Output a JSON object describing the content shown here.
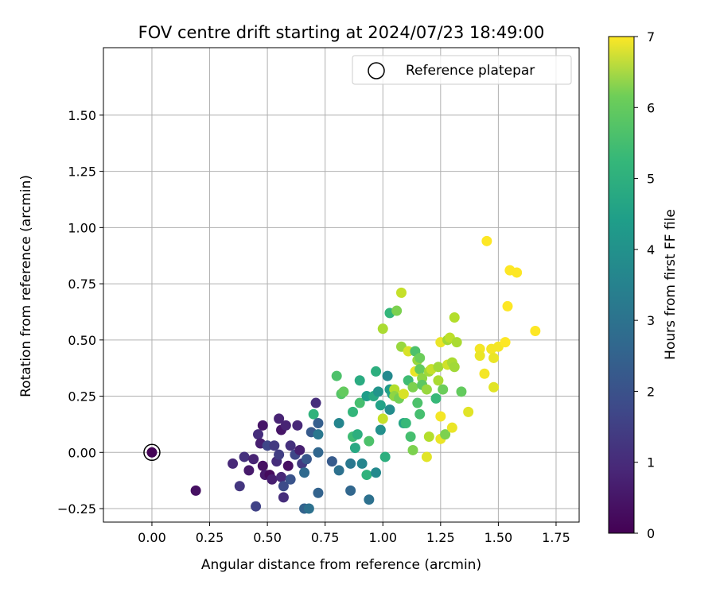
{
  "chart_data": {
    "type": "scatter",
    "title": "FOV centre drift starting at 2024/07/23 18:49:00",
    "xlabel": "Angular distance from reference (arcmin)",
    "ylabel": "Rotation from reference (arcmin)",
    "xlim": [
      -0.21,
      1.85
    ],
    "ylim": [
      -0.31,
      1.8
    ],
    "xticks": [
      "0.00",
      "0.25",
      "0.50",
      "0.75",
      "1.00",
      "1.25",
      "1.50",
      "1.75"
    ],
    "yticks": [
      "−0.25",
      "0.00",
      "0.25",
      "0.50",
      "0.75",
      "1.00",
      "1.25",
      "1.50"
    ],
    "grid": true,
    "legend": {
      "position": "top-right",
      "entries": [
        "Reference platepar"
      ]
    },
    "colorbar": {
      "label": "Hours from first FF file",
      "range": [
        0,
        7
      ],
      "ticks": [
        "0",
        "1",
        "2",
        "3",
        "4",
        "5",
        "6",
        "7"
      ],
      "colormap": "viridis"
    },
    "reference_point": {
      "x": 0.0,
      "y": 0.0
    },
    "points": [
      {
        "x": 0.0,
        "y": 0.0,
        "c": 0.05
      },
      {
        "x": 0.19,
        "y": -0.17,
        "c": 0.3
      },
      {
        "x": 0.35,
        "y": -0.05,
        "c": 0.8
      },
      {
        "x": 0.38,
        "y": -0.15,
        "c": 1.1
      },
      {
        "x": 0.4,
        "y": -0.02,
        "c": 1.0
      },
      {
        "x": 0.42,
        "y": -0.08,
        "c": 0.5
      },
      {
        "x": 0.44,
        "y": -0.03,
        "c": 0.7
      },
      {
        "x": 0.45,
        "y": -0.24,
        "c": 1.4
      },
      {
        "x": 0.46,
        "y": 0.08,
        "c": 0.9
      },
      {
        "x": 0.47,
        "y": 0.04,
        "c": 0.6
      },
      {
        "x": 0.48,
        "y": 0.12,
        "c": 0.4
      },
      {
        "x": 0.48,
        "y": -0.06,
        "c": 0.3
      },
      {
        "x": 0.49,
        "y": -0.1,
        "c": 0.5
      },
      {
        "x": 0.5,
        "y": 0.03,
        "c": 1.5
      },
      {
        "x": 0.51,
        "y": -0.1,
        "c": 0.2
      },
      {
        "x": 0.52,
        "y": -0.12,
        "c": 0.6
      },
      {
        "x": 0.53,
        "y": 0.03,
        "c": 1.2
      },
      {
        "x": 0.54,
        "y": -0.04,
        "c": 0.9
      },
      {
        "x": 0.55,
        "y": 0.15,
        "c": 0.7
      },
      {
        "x": 0.55,
        "y": -0.01,
        "c": 1.3
      },
      {
        "x": 0.56,
        "y": 0.1,
        "c": 0.4
      },
      {
        "x": 0.56,
        "y": -0.11,
        "c": 0.8
      },
      {
        "x": 0.57,
        "y": -0.2,
        "c": 0.9
      },
      {
        "x": 0.57,
        "y": -0.15,
        "c": 1.6
      },
      {
        "x": 0.58,
        "y": 0.12,
        "c": 0.7
      },
      {
        "x": 0.59,
        "y": -0.06,
        "c": 0.3
      },
      {
        "x": 0.6,
        "y": 0.03,
        "c": 1.0
      },
      {
        "x": 0.6,
        "y": -0.12,
        "c": 1.8
      },
      {
        "x": 0.62,
        "y": -0.01,
        "c": 1.5
      },
      {
        "x": 0.63,
        "y": 0.12,
        "c": 0.8
      },
      {
        "x": 0.64,
        "y": 0.01,
        "c": 0.6
      },
      {
        "x": 0.65,
        "y": -0.05,
        "c": 1.2
      },
      {
        "x": 0.66,
        "y": -0.25,
        "c": 2.2
      },
      {
        "x": 0.66,
        "y": -0.09,
        "c": 2.4
      },
      {
        "x": 0.67,
        "y": -0.03,
        "c": 1.9
      },
      {
        "x": 0.68,
        "y": -0.25,
        "c": 2.6
      },
      {
        "x": 0.69,
        "y": 0.09,
        "c": 2.0
      },
      {
        "x": 0.7,
        "y": 0.17,
        "c": 4.5
      },
      {
        "x": 0.71,
        "y": 0.22,
        "c": 0.9
      },
      {
        "x": 0.72,
        "y": 0.13,
        "c": 2.1
      },
      {
        "x": 0.72,
        "y": 0.08,
        "c": 2.8
      },
      {
        "x": 0.72,
        "y": 0.0,
        "c": 2.3
      },
      {
        "x": 0.72,
        "y": -0.18,
        "c": 2.2
      },
      {
        "x": 0.78,
        "y": -0.04,
        "c": 2.0
      },
      {
        "x": 0.8,
        "y": 0.34,
        "c": 5.0
      },
      {
        "x": 0.81,
        "y": 0.13,
        "c": 3.2
      },
      {
        "x": 0.81,
        "y": -0.08,
        "c": 2.6
      },
      {
        "x": 0.82,
        "y": 0.26,
        "c": 5.1
      },
      {
        "x": 0.83,
        "y": 0.27,
        "c": 5.3
      },
      {
        "x": 0.86,
        "y": -0.05,
        "c": 2.8
      },
      {
        "x": 0.86,
        "y": -0.17,
        "c": 2.3
      },
      {
        "x": 0.87,
        "y": 0.18,
        "c": 4.6
      },
      {
        "x": 0.87,
        "y": 0.07,
        "c": 4.8
      },
      {
        "x": 0.88,
        "y": 0.02,
        "c": 4.2
      },
      {
        "x": 0.89,
        "y": 0.08,
        "c": 4.4
      },
      {
        "x": 0.9,
        "y": 0.32,
        "c": 4.3
      },
      {
        "x": 0.9,
        "y": 0.22,
        "c": 4.9
      },
      {
        "x": 0.91,
        "y": -0.05,
        "c": 3.2
      },
      {
        "x": 0.93,
        "y": 0.25,
        "c": 3.9
      },
      {
        "x": 0.93,
        "y": -0.1,
        "c": 4.5
      },
      {
        "x": 0.94,
        "y": -0.21,
        "c": 2.6
      },
      {
        "x": 0.94,
        "y": 0.05,
        "c": 5.0
      },
      {
        "x": 0.96,
        "y": 0.25,
        "c": 4.2
      },
      {
        "x": 0.97,
        "y": 0.36,
        "c": 4.4
      },
      {
        "x": 0.97,
        "y": -0.09,
        "c": 3.3
      },
      {
        "x": 0.98,
        "y": 0.27,
        "c": 3.6
      },
      {
        "x": 0.99,
        "y": 0.21,
        "c": 4.0
      },
      {
        "x": 0.99,
        "y": 0.1,
        "c": 3.5
      },
      {
        "x": 1.0,
        "y": 0.55,
        "c": 6.1
      },
      {
        "x": 1.0,
        "y": 0.15,
        "c": 6.4
      },
      {
        "x": 1.01,
        "y": -0.02,
        "c": 4.4
      },
      {
        "x": 1.02,
        "y": 0.34,
        "c": 3.3
      },
      {
        "x": 1.03,
        "y": 0.62,
        "c": 4.6
      },
      {
        "x": 1.03,
        "y": 0.28,
        "c": 3.8
      },
      {
        "x": 1.03,
        "y": 0.19,
        "c": 3.4
      },
      {
        "x": 1.04,
        "y": 0.26,
        "c": 4.0
      },
      {
        "x": 1.05,
        "y": 0.28,
        "c": 6.2
      },
      {
        "x": 1.05,
        "y": 0.25,
        "c": 5.8
      },
      {
        "x": 1.06,
        "y": 0.63,
        "c": 5.6
      },
      {
        "x": 1.07,
        "y": 0.24,
        "c": 5.5
      },
      {
        "x": 1.08,
        "y": 0.71,
        "c": 6.4
      },
      {
        "x": 1.08,
        "y": 0.47,
        "c": 5.9
      },
      {
        "x": 1.09,
        "y": 0.13,
        "c": 4.1
      },
      {
        "x": 1.09,
        "y": 0.26,
        "c": 6.6
      },
      {
        "x": 1.1,
        "y": 0.13,
        "c": 4.7
      },
      {
        "x": 1.11,
        "y": 0.32,
        "c": 4.8
      },
      {
        "x": 1.11,
        "y": 0.45,
        "c": 6.6
      },
      {
        "x": 1.12,
        "y": 0.07,
        "c": 4.9
      },
      {
        "x": 1.13,
        "y": 0.29,
        "c": 5.6
      },
      {
        "x": 1.13,
        "y": 0.01,
        "c": 5.6
      },
      {
        "x": 1.14,
        "y": 0.45,
        "c": 5.0
      },
      {
        "x": 1.14,
        "y": 0.36,
        "c": 6.8
      },
      {
        "x": 1.15,
        "y": 0.41,
        "c": 5.9
      },
      {
        "x": 1.15,
        "y": 0.22,
        "c": 5.0
      },
      {
        "x": 1.16,
        "y": 0.42,
        "c": 5.4
      },
      {
        "x": 1.16,
        "y": 0.37,
        "c": 5.3
      },
      {
        "x": 1.16,
        "y": 0.17,
        "c": 4.9
      },
      {
        "x": 1.17,
        "y": 0.33,
        "c": 5.8
      },
      {
        "x": 1.17,
        "y": 0.3,
        "c": 5.2
      },
      {
        "x": 1.19,
        "y": -0.02,
        "c": 6.7
      },
      {
        "x": 1.19,
        "y": 0.28,
        "c": 5.9
      },
      {
        "x": 1.2,
        "y": 0.36,
        "c": 6.0
      },
      {
        "x": 1.2,
        "y": 0.07,
        "c": 6.2
      },
      {
        "x": 1.21,
        "y": 0.37,
        "c": 6.4
      },
      {
        "x": 1.23,
        "y": 0.24,
        "c": 4.7
      },
      {
        "x": 1.24,
        "y": 0.38,
        "c": 6.0
      },
      {
        "x": 1.24,
        "y": 0.32,
        "c": 6.1
      },
      {
        "x": 1.25,
        "y": 0.49,
        "c": 6.8
      },
      {
        "x": 1.25,
        "y": 0.16,
        "c": 6.9
      },
      {
        "x": 1.25,
        "y": 0.06,
        "c": 6.8
      },
      {
        "x": 1.26,
        "y": 0.28,
        "c": 5.4
      },
      {
        "x": 1.27,
        "y": 0.08,
        "c": 5.6
      },
      {
        "x": 1.28,
        "y": 0.5,
        "c": 6.0
      },
      {
        "x": 1.28,
        "y": 0.39,
        "c": 6.5
      },
      {
        "x": 1.29,
        "y": 0.51,
        "c": 6.3
      },
      {
        "x": 1.3,
        "y": 0.11,
        "c": 6.8
      },
      {
        "x": 1.3,
        "y": 0.4,
        "c": 6.1
      },
      {
        "x": 1.31,
        "y": 0.6,
        "c": 6.2
      },
      {
        "x": 1.31,
        "y": 0.38,
        "c": 6.0
      },
      {
        "x": 1.32,
        "y": 0.49,
        "c": 6.1
      },
      {
        "x": 1.34,
        "y": 0.27,
        "c": 5.3
      },
      {
        "x": 1.37,
        "y": 0.18,
        "c": 6.7
      },
      {
        "x": 1.42,
        "y": 0.46,
        "c": 6.9
      },
      {
        "x": 1.42,
        "y": 0.43,
        "c": 6.8
      },
      {
        "x": 1.44,
        "y": 0.35,
        "c": 6.9
      },
      {
        "x": 1.45,
        "y": 0.94,
        "c": 7.0
      },
      {
        "x": 1.47,
        "y": 0.46,
        "c": 6.9
      },
      {
        "x": 1.48,
        "y": 0.42,
        "c": 6.8
      },
      {
        "x": 1.48,
        "y": 0.29,
        "c": 6.7
      },
      {
        "x": 1.5,
        "y": 0.47,
        "c": 6.9
      },
      {
        "x": 1.53,
        "y": 0.49,
        "c": 7.0
      },
      {
        "x": 1.54,
        "y": 0.65,
        "c": 7.0
      },
      {
        "x": 1.55,
        "y": 0.81,
        "c": 7.0
      },
      {
        "x": 1.58,
        "y": 0.8,
        "c": 7.0
      },
      {
        "x": 1.66,
        "y": 0.54,
        "c": 7.0
      }
    ]
  }
}
